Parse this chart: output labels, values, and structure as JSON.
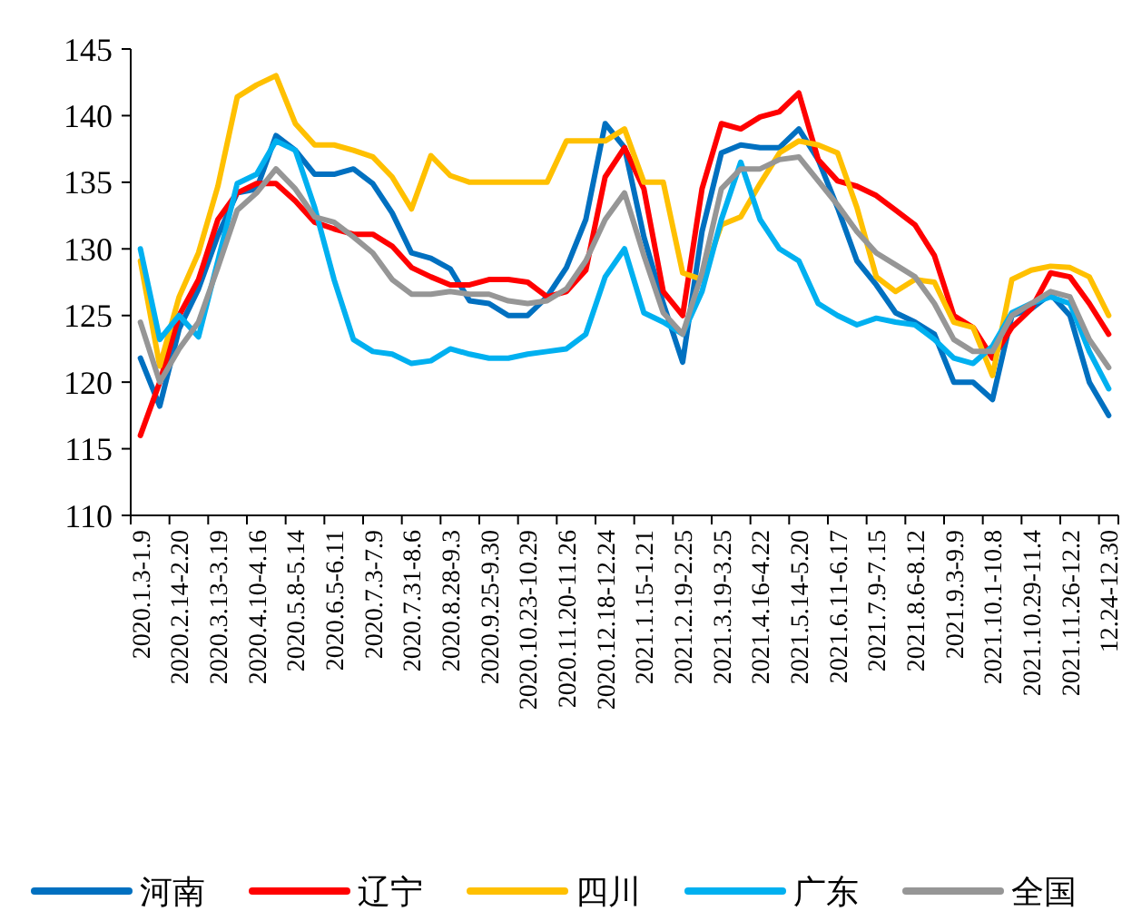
{
  "chart_data": {
    "type": "line",
    "categories": [
      "2020.1.3-1.9",
      null,
      "2020.2.14-2.20",
      null,
      "2020.3.13-3.19",
      null,
      "2020.4.10-4.16",
      null,
      "2020.5.8-5.14",
      null,
      "2020.6.5-6.11",
      null,
      "2020.7.3-7.9",
      null,
      "2020.7.31-8.6",
      null,
      "2020.8.28-9.3",
      null,
      "2020.9.25-9.30",
      null,
      "2020.10.23-10.29",
      null,
      "2020.11.20-11.26",
      null,
      "2020.12.18-12.24",
      null,
      "2021.1.15-1.21",
      null,
      "2021.2.19-2.25",
      null,
      "2021.3.19-3.25",
      null,
      "2021.4.16-4.22",
      null,
      "2021.5.14-5.20",
      null,
      "2021.6.11-6.17",
      null,
      "2021.7.9-7.15",
      null,
      "2021.8.6-8.12",
      null,
      "2021.9.3-9.9",
      null,
      "2021.10.1-10.8",
      null,
      "2021.10.29-11.4",
      null,
      "2021.11.26-12.2",
      null,
      "12.24-12.30"
    ],
    "series": [
      {
        "name": "河南",
        "color": "#0070c0",
        "values": [
          121.8,
          118.2,
          124,
          127,
          131,
          134.2,
          134.5,
          138.5,
          137.4,
          135.6,
          135.6,
          136,
          134.9,
          132.7,
          129.7,
          129.3,
          128.5,
          126.1,
          125.9,
          125,
          125,
          126.4,
          128.6,
          132.2,
          139.4,
          137.6,
          130.9,
          125.9,
          121.5,
          131.3,
          137.2,
          137.8,
          137.6,
          137.6,
          139,
          136.7,
          133.1,
          129.1,
          127.3,
          125.2,
          124.5,
          123.6,
          120,
          120,
          118.7,
          125,
          125.5,
          126.6,
          125,
          120,
          117.5
        ]
      },
      {
        "name": "辽宁",
        "color": "#ff0000",
        "values": [
          116,
          120,
          125,
          127.7,
          132.2,
          134.2,
          134.9,
          134.9,
          133.6,
          132,
          131.5,
          131.1,
          131.1,
          130.2,
          128.6,
          127.9,
          127.3,
          127.3,
          127.7,
          127.7,
          127.5,
          126.4,
          126.8,
          128.4,
          135.4,
          137.6,
          134.5,
          126.8,
          125,
          134.5,
          139.4,
          139,
          139.9,
          140.3,
          141.7,
          136.7,
          135.1,
          134.7,
          134,
          132.9,
          131.8,
          129.5,
          125,
          124.1,
          121.8,
          124.1,
          125.5,
          128.2,
          127.9,
          125.9,
          123.6
        ]
      },
      {
        "name": "四川",
        "color": "#ffc000",
        "values": [
          129.1,
          121.2,
          126.4,
          129.7,
          134.7,
          141.4,
          142.3,
          143,
          139.4,
          137.8,
          137.8,
          137.4,
          136.9,
          135.4,
          133,
          137,
          135.5,
          135,
          135,
          135,
          135,
          135,
          138.1,
          138.1,
          138.1,
          139,
          135,
          135,
          128.2,
          127.7,
          131.8,
          132.4,
          134.9,
          137.2,
          138.1,
          137.8,
          137.2,
          133.1,
          127.9,
          126.8,
          127.7,
          127.5,
          124.5,
          124.1,
          120.5,
          127.7,
          128.4,
          128.7,
          128.6,
          127.9,
          125
        ]
      },
      {
        "name": "广东",
        "color": "#00b0f0",
        "values": [
          130,
          123.2,
          125,
          123.4,
          129.1,
          134.9,
          135.6,
          138.1,
          137.4,
          133.1,
          127.7,
          123.2,
          122.3,
          122.1,
          121.4,
          121.6,
          122.5,
          122.1,
          121.8,
          121.8,
          122.1,
          122.3,
          122.5,
          123.6,
          127.9,
          130,
          125.2,
          124.5,
          123.6,
          126.8,
          132.2,
          136.5,
          132.2,
          130,
          129.1,
          125.9,
          125,
          124.3,
          124.8,
          124.5,
          124.3,
          123.2,
          121.8,
          121.4,
          122.7,
          125.2,
          125.9,
          126.4,
          125.9,
          122.3,
          119.5
        ]
      },
      {
        "name": "全国",
        "color": "#969696",
        "values": [
          124.5,
          120,
          122.5,
          124.5,
          128.6,
          132.9,
          134.2,
          136,
          134.5,
          132.4,
          132,
          130.9,
          129.7,
          127.7,
          126.6,
          126.6,
          126.8,
          126.6,
          126.6,
          126.1,
          125.9,
          126.1,
          127,
          129.1,
          132.2,
          134.2,
          129.5,
          125.2,
          123.6,
          128.2,
          134.5,
          136,
          136,
          136.7,
          136.9,
          135.1,
          133.3,
          131.3,
          129.7,
          128.8,
          127.9,
          125.9,
          123.2,
          122.3,
          122.3,
          125,
          125.9,
          126.8,
          126.4,
          123.2,
          121.1
        ]
      }
    ],
    "ylim": [
      110,
      145
    ],
    "yticks": [
      110,
      115,
      120,
      125,
      130,
      135,
      140,
      145
    ],
    "grid": false,
    "legend": "bottom",
    "line_style": "solid",
    "marker": "none"
  }
}
